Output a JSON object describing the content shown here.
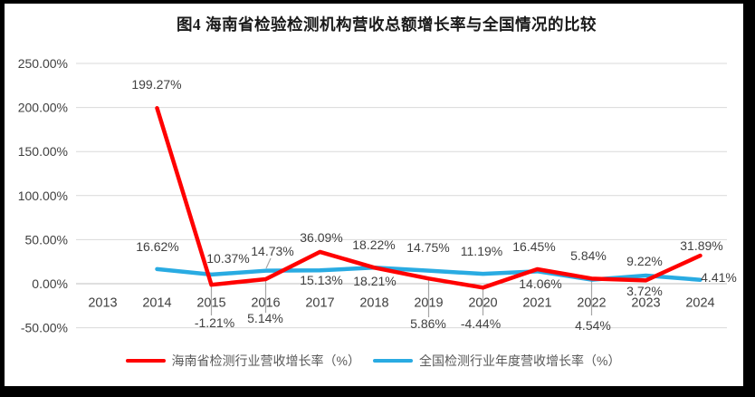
{
  "title": "图4 海南省检验检测机构营收总额增长率与全国情况的比较",
  "y_axis": {
    "tick_labels": [
      "250.00%",
      "200.00%",
      "150.00%",
      "100.00%",
      "50.00%",
      "0.00%",
      "-50.00%"
    ]
  },
  "x_axis": {
    "tick_labels": [
      "2013",
      "2014",
      "2015",
      "2016",
      "2017",
      "2018",
      "2019",
      "2020",
      "2021",
      "2022",
      "2023",
      "2024"
    ]
  },
  "legend": {
    "items": [
      {
        "label": "海南省检测行业营收增长率（%）",
        "color": "#FF0000"
      },
      {
        "label": "全国检测行业年度营收增长率（%）",
        "color": "#29ABE2"
      }
    ]
  },
  "colors": {
    "hainan_series": "#FF0000",
    "national_series": "#29ABE2",
    "gridline": "#D9D9D9",
    "zero_axis": "#BFBFBF",
    "leader_line": "#A6A6A6",
    "axis_text": "#404040",
    "data_label_text": "#404040",
    "legend_text": "#595959"
  },
  "chart_data": {
    "type": "line",
    "title": "图4 海南省检验检测机构营收总额增长率与全国情况的比较",
    "categories": [
      "2013",
      "2014",
      "2015",
      "2016",
      "2017",
      "2018",
      "2019",
      "2020",
      "2021",
      "2022",
      "2023",
      "2024"
    ],
    "series": [
      {
        "name": "海南省检测行业营收增长率（%）",
        "color": "#FF0000",
        "values": [
          null,
          199.27,
          -1.21,
          5.14,
          36.09,
          18.22,
          5.86,
          -4.44,
          16.45,
          5.84,
          3.72,
          31.89
        ]
      },
      {
        "name": "全国检测行业年度营收增长率（%）",
        "color": "#29ABE2",
        "values": [
          null,
          16.62,
          10.37,
          14.73,
          15.13,
          18.21,
          14.75,
          11.19,
          14.06,
          4.54,
          9.22,
          4.41
        ]
      }
    ],
    "xlabel": "",
    "ylabel": "",
    "ylim": [
      -50,
      250
    ],
    "ytick_step": 50,
    "grid": true,
    "data_labels": true,
    "legend_position": "bottom"
  }
}
